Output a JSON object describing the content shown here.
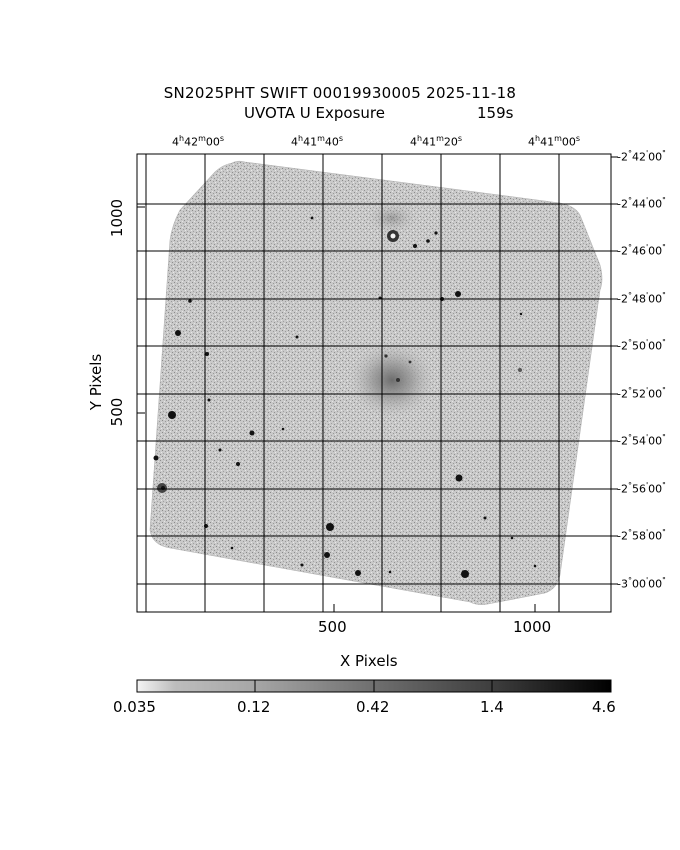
{
  "title": {
    "line1": "SN2025PHT SWIFT 00019930005 2025-11-18",
    "line2_left": "UVOTA U Exposure",
    "line2_right": "159s"
  },
  "axes": {
    "xlabel": "X Pixels",
    "ylabel": "Y Pixels",
    "x_ticks": [
      "500",
      "1000"
    ],
    "y_ticks": [
      "1000",
      "500"
    ],
    "ra_ticks": [
      "4h42m00s",
      "4h41m40s",
      "4h41m20s",
      "4h41m00s"
    ],
    "ra_parts": [
      {
        "h": "4",
        "m": "42",
        "s": "00"
      },
      {
        "h": "4",
        "m": "41",
        "s": "40"
      },
      {
        "h": "4",
        "m": "41",
        "s": "20"
      },
      {
        "h": "4",
        "m": "41",
        "s": "00"
      }
    ],
    "dec_ticks": [
      {
        "deg": "-2",
        "min": "42",
        "sec": "00"
      },
      {
        "deg": "-2",
        "min": "44",
        "sec": "00"
      },
      {
        "deg": "-2",
        "min": "46",
        "sec": "00"
      },
      {
        "deg": "-2",
        "min": "48",
        "sec": "00"
      },
      {
        "deg": "-2",
        "min": "50",
        "sec": "00"
      },
      {
        "deg": "-2",
        "min": "52",
        "sec": "00"
      },
      {
        "deg": "-2",
        "min": "54",
        "sec": "00"
      },
      {
        "deg": "-2",
        "min": "56",
        "sec": "00"
      },
      {
        "deg": "-2",
        "min": "58",
        "sec": "00"
      },
      {
        "deg": "-3",
        "min": "00",
        "sec": "00"
      }
    ]
  },
  "colorbar": {
    "labels": [
      "0.035",
      "0.12",
      "0.42",
      "1.4",
      "4.6"
    ]
  }
}
